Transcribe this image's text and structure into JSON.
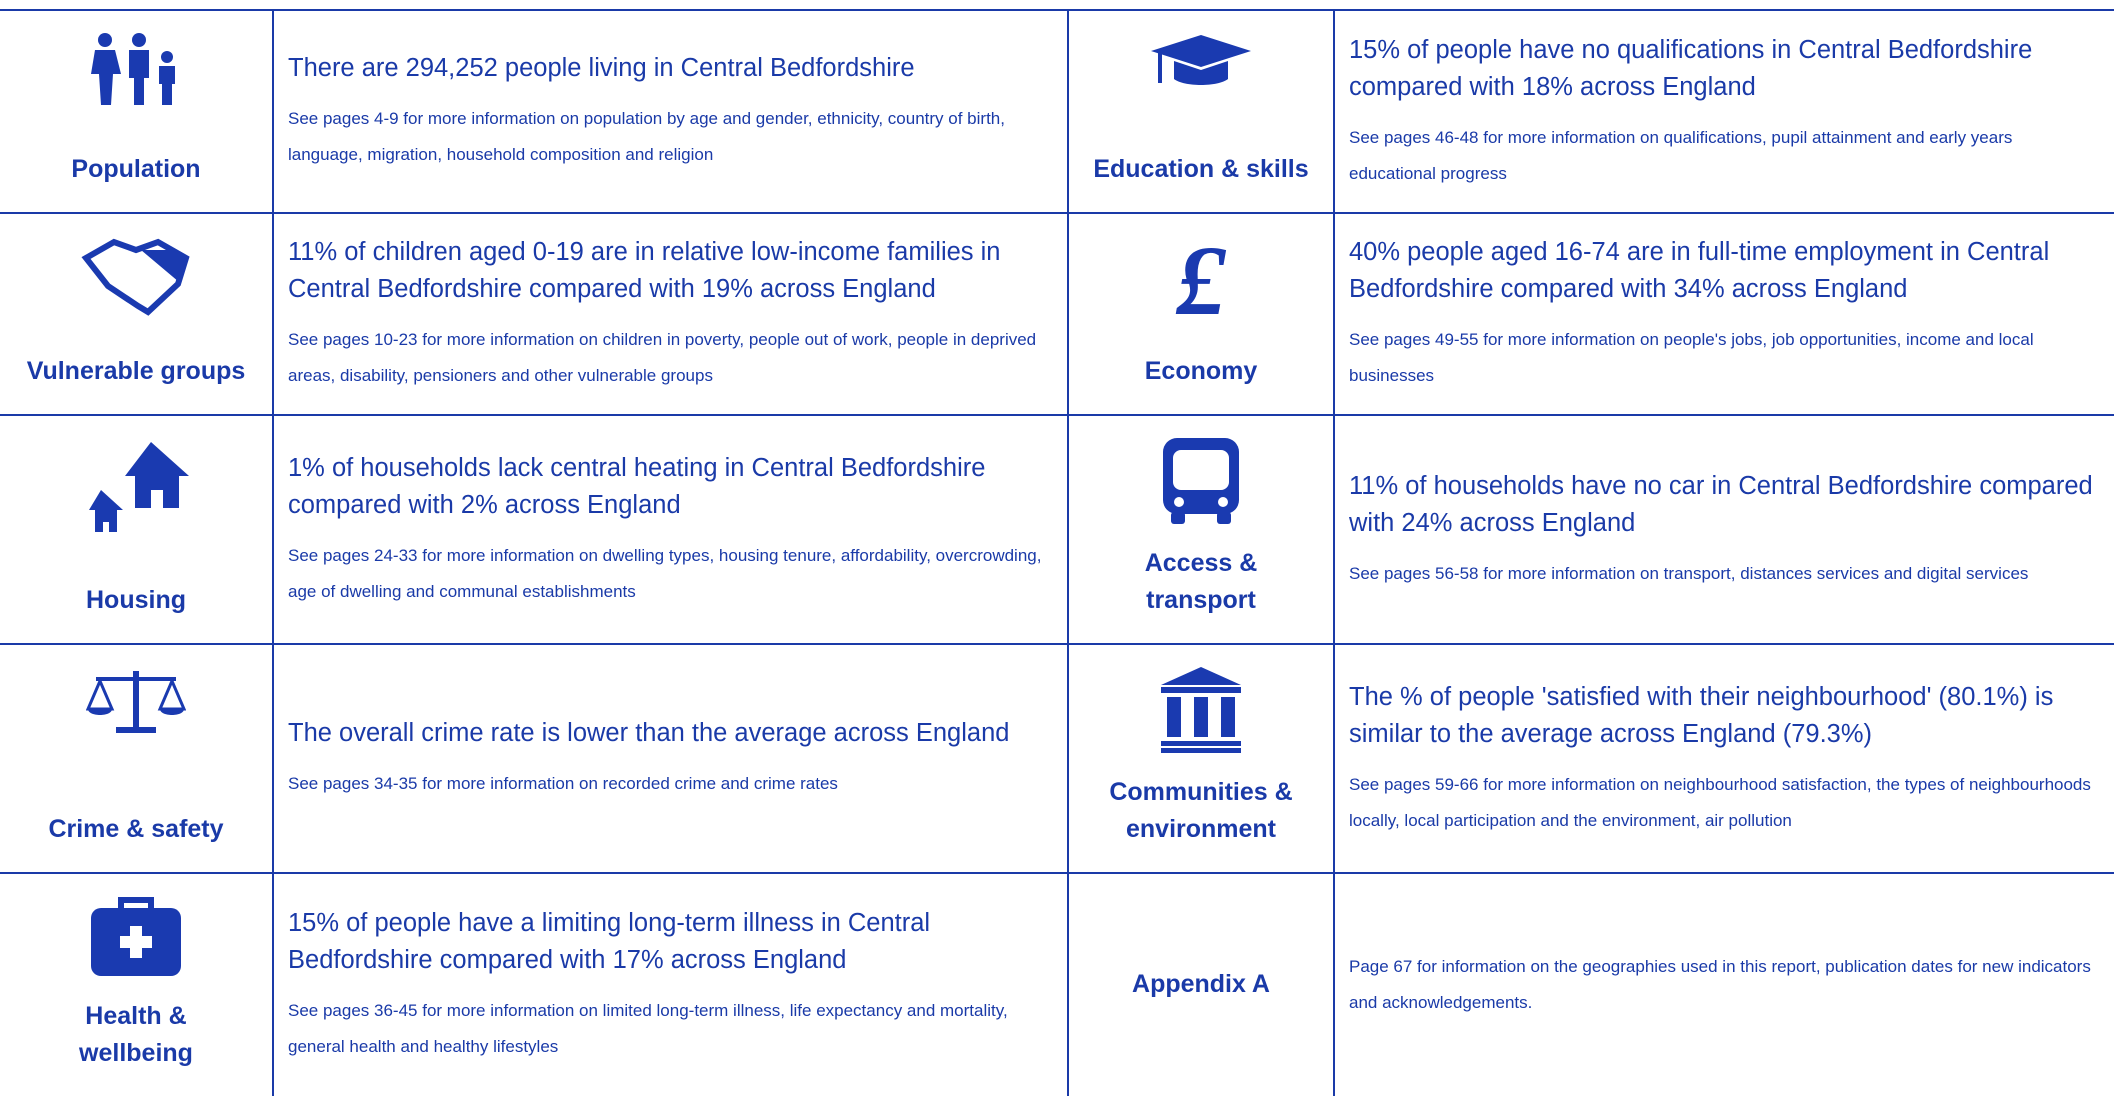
{
  "rows": [
    {
      "left": {
        "label": "Population",
        "headline": "There are 294,252 people living in Central Bedfordshire",
        "detail": "See pages 4-9 for more information on population by age and gender, ethnicity, country of birth, language, migration, household composition and religion"
      },
      "right": {
        "label": "Education & skills",
        "headline": "15% of people have no qualifications in Central Bedfordshire compared with 18% across England",
        "detail": "See pages 46-48 for more information on qualifications, pupil attainment and early years educational progress"
      }
    },
    {
      "left": {
        "label": "Vulnerable groups",
        "headline": "11% of children aged 0-19 are in relative low-income families in Central Bedfordshire compared with 19% across England",
        "detail": "See pages 10-23 for more information on children in poverty, people out of work, people in deprived areas, disability, pensioners and other vulnerable groups"
      },
      "right": {
        "label": "Economy",
        "headline": "40% people aged 16-74 are in full-time employment in Central Bedfordshire compared with 34% across England",
        "detail": "See pages 49-55 for more information on people's jobs, job opportunities, income and local businesses"
      }
    },
    {
      "left": {
        "label": "Housing",
        "headline": "1% of households lack central heating in Central Bedfordshire compared with 2% across England",
        "detail": "See pages 24-33 for more information on dwelling types, housing tenure, affordability, overcrowding, age of dwelling and communal establishments"
      },
      "right": {
        "label": "Access & transport",
        "headline": "11% of households have no car in Central Bedfordshire compared with 24% across England",
        "detail": "See pages 56-58 for more information on transport, distances services and digital services"
      }
    },
    {
      "left": {
        "label": "Crime & safety",
        "headline": "The overall crime rate is lower than the average across England",
        "detail": "See pages 34-35 for more information on recorded crime and crime rates"
      },
      "right": {
        "label": "Communities & environment",
        "headline": "The % of people 'satisfied with their neighbourhood' (80.1%) is similar to the average across England (79.3%)",
        "detail": "See pages 59-66 for more information on neighbourhood satisfaction, the types of neighbourhoods locally, local participation and the environment, air pollution"
      }
    },
    {
      "left": {
        "label": "Health & wellbeing",
        "headline": "15% of people have a limiting long-term illness in Central Bedfordshire compared with 17% across England",
        "detail": "See pages 36-45 for more information on limited long-term illness, life expectancy and mortality, general health and healthy lifestyles"
      },
      "right": {
        "label": "Appendix A",
        "detail": "Page 67 for information on the geographies used in this report, publication dates for new indicators and acknowledgements."
      }
    }
  ]
}
